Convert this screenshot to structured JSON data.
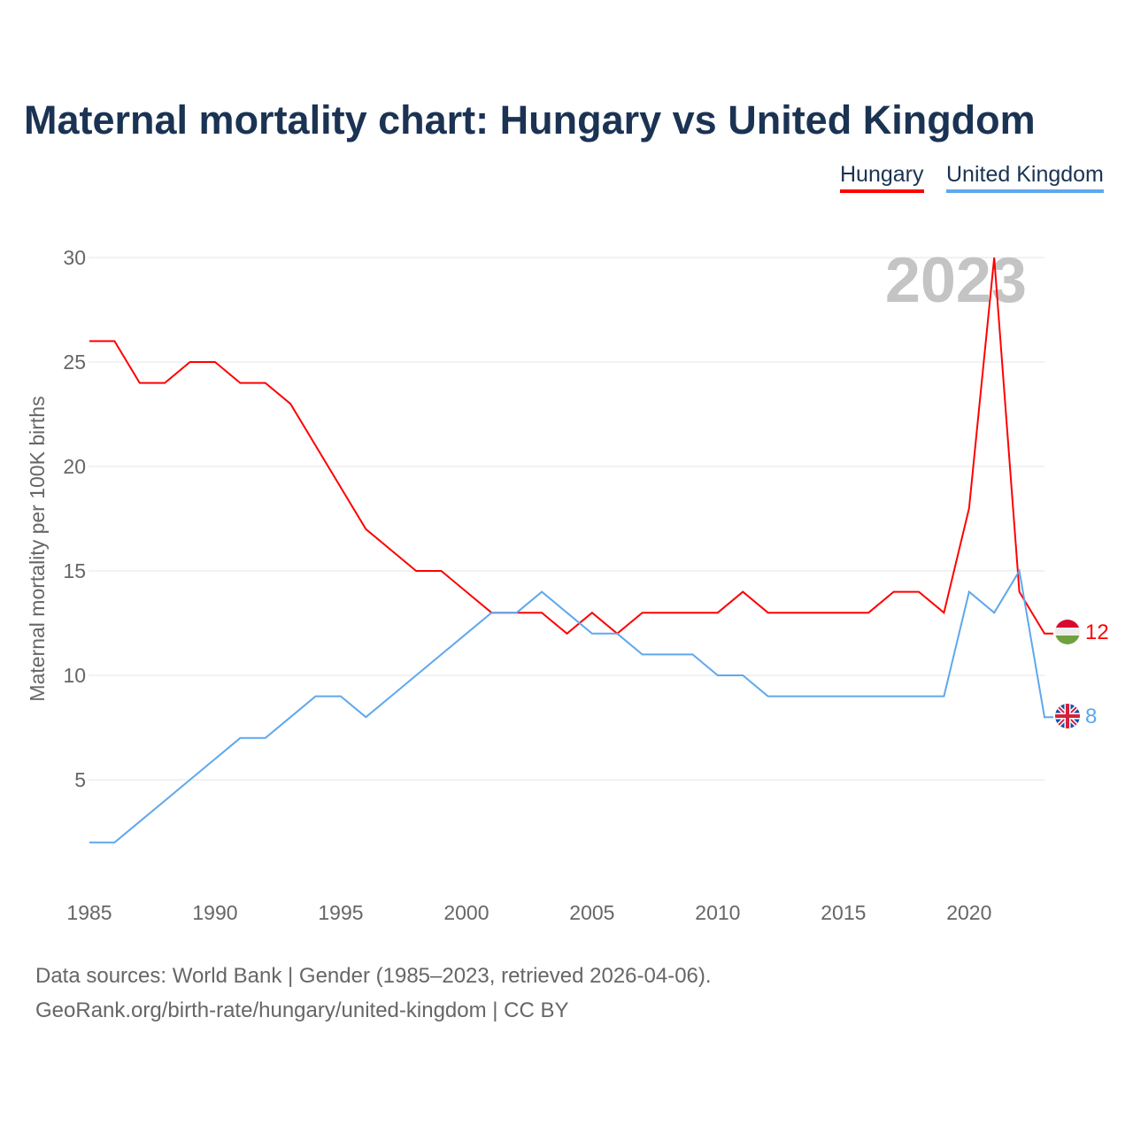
{
  "title": "Maternal mortality chart: Hungary vs United Kingdom",
  "footer": {
    "line1": "Data sources: World Bank | Gender (1985–2023, retrieved 2026-04-06).",
    "line2": "GeoRank.org/birth-rate/hungary/united-kingdom | CC BY"
  },
  "chart_data": {
    "type": "line",
    "title": "Maternal mortality chart: Hungary vs United Kingdom",
    "ylabel": "Maternal mortality per 100K births",
    "xlabel": "",
    "year_label": "2023",
    "x": [
      1985,
      1986,
      1987,
      1988,
      1989,
      1990,
      1991,
      1992,
      1993,
      1994,
      1995,
      1996,
      1997,
      1998,
      1999,
      2000,
      2001,
      2002,
      2003,
      2004,
      2005,
      2006,
      2007,
      2008,
      2009,
      2010,
      2011,
      2012,
      2013,
      2014,
      2015,
      2016,
      2017,
      2018,
      2019,
      2020,
      2021,
      2022,
      2023
    ],
    "xlim": [
      1985,
      2023
    ],
    "ylim": [
      0,
      30
    ],
    "xticks": [
      "1985",
      "1990",
      "1995",
      "2000",
      "2005",
      "2010",
      "2015",
      "2020"
    ],
    "yticks": [
      "5",
      "10",
      "15",
      "20",
      "25",
      "30"
    ],
    "grid": true,
    "legend_position": "top-right",
    "series": [
      {
        "name": "Hungary",
        "color": "#ff0000",
        "end_label": "12",
        "values": [
          26,
          26,
          24,
          24,
          25,
          25,
          24,
          24,
          23,
          21,
          19,
          17,
          16,
          15,
          15,
          14,
          13,
          13,
          13,
          12,
          13,
          12,
          13,
          13,
          13,
          13,
          14,
          13,
          13,
          13,
          13,
          13,
          14,
          14,
          13,
          18,
          30,
          14,
          12
        ]
      },
      {
        "name": "United Kingdom",
        "color": "#5ea8ed",
        "end_label": "8",
        "values": [
          2,
          2,
          3,
          4,
          5,
          6,
          7,
          7,
          8,
          9,
          9,
          8,
          9,
          10,
          11,
          12,
          13,
          13,
          14,
          13,
          12,
          12,
          11,
          11,
          11,
          10,
          10,
          9,
          9,
          9,
          9,
          9,
          9,
          9,
          9,
          14,
          13,
          15,
          8
        ]
      }
    ]
  }
}
